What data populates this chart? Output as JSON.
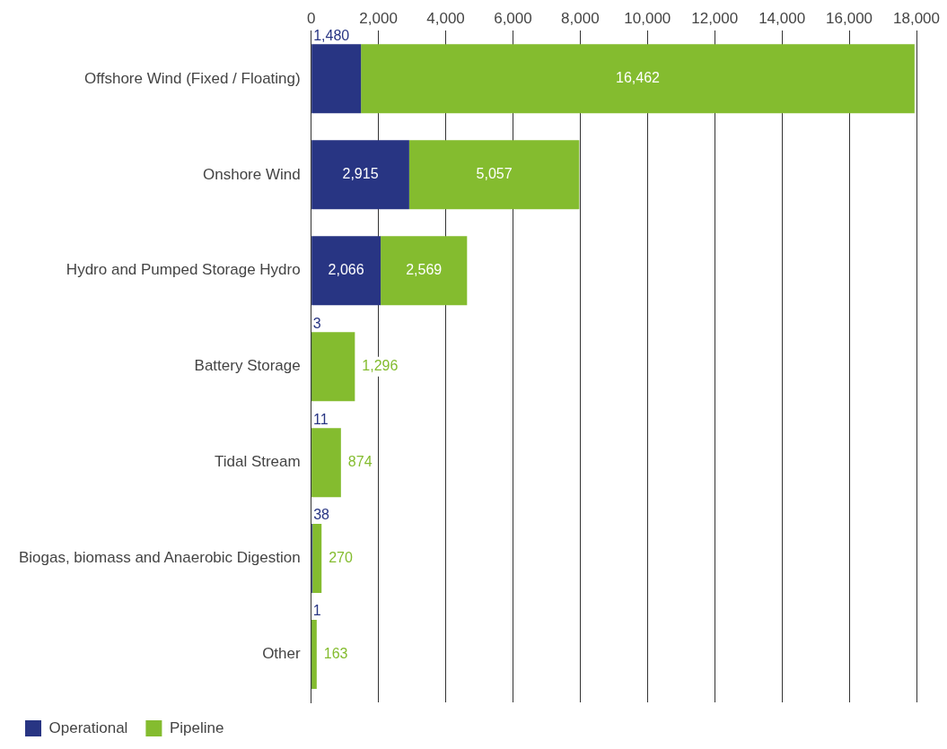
{
  "chart_data": {
    "type": "bar",
    "orientation": "horizontal",
    "stacked": true,
    "categories": [
      "Offshore Wind (Fixed / Floating)",
      "Onshore Wind",
      "Hydro and Pumped Storage Hydro",
      "Battery Storage",
      "Tidal Stream",
      "Biogas, biomass and Anaerobic Digestion",
      "Other"
    ],
    "series": [
      {
        "name": "Operational",
        "color": "#283583",
        "values": [
          1480,
          2915,
          2066,
          3,
          11,
          38,
          1
        ],
        "value_labels": [
          "1,480",
          "2,915",
          "2,066",
          "3",
          "11",
          "38",
          "1"
        ]
      },
      {
        "name": "Pipeline",
        "color": "#84bc2f",
        "values": [
          16462,
          5057,
          2569,
          1296,
          874,
          270,
          163
        ],
        "value_labels": [
          "16,462",
          "5,057",
          "2,569",
          "1,296",
          "874",
          "270",
          "163"
        ]
      }
    ],
    "xlim": [
      0,
      18000
    ],
    "xticks": [
      {
        "value": 0,
        "label": "0"
      },
      {
        "value": 2000,
        "label": "2,000"
      },
      {
        "value": 4000,
        "label": "4,000"
      },
      {
        "value": 6000,
        "label": "6,000"
      },
      {
        "value": 8000,
        "label": "8,000"
      },
      {
        "value": 10000,
        "label": "10,000"
      },
      {
        "value": 12000,
        "label": "12,000"
      },
      {
        "value": 14000,
        "label": "14,000"
      },
      {
        "value": 16000,
        "label": "16,000"
      },
      {
        "value": 18000,
        "label": "18,000"
      }
    ],
    "grid": "x",
    "legend": "bottom"
  }
}
